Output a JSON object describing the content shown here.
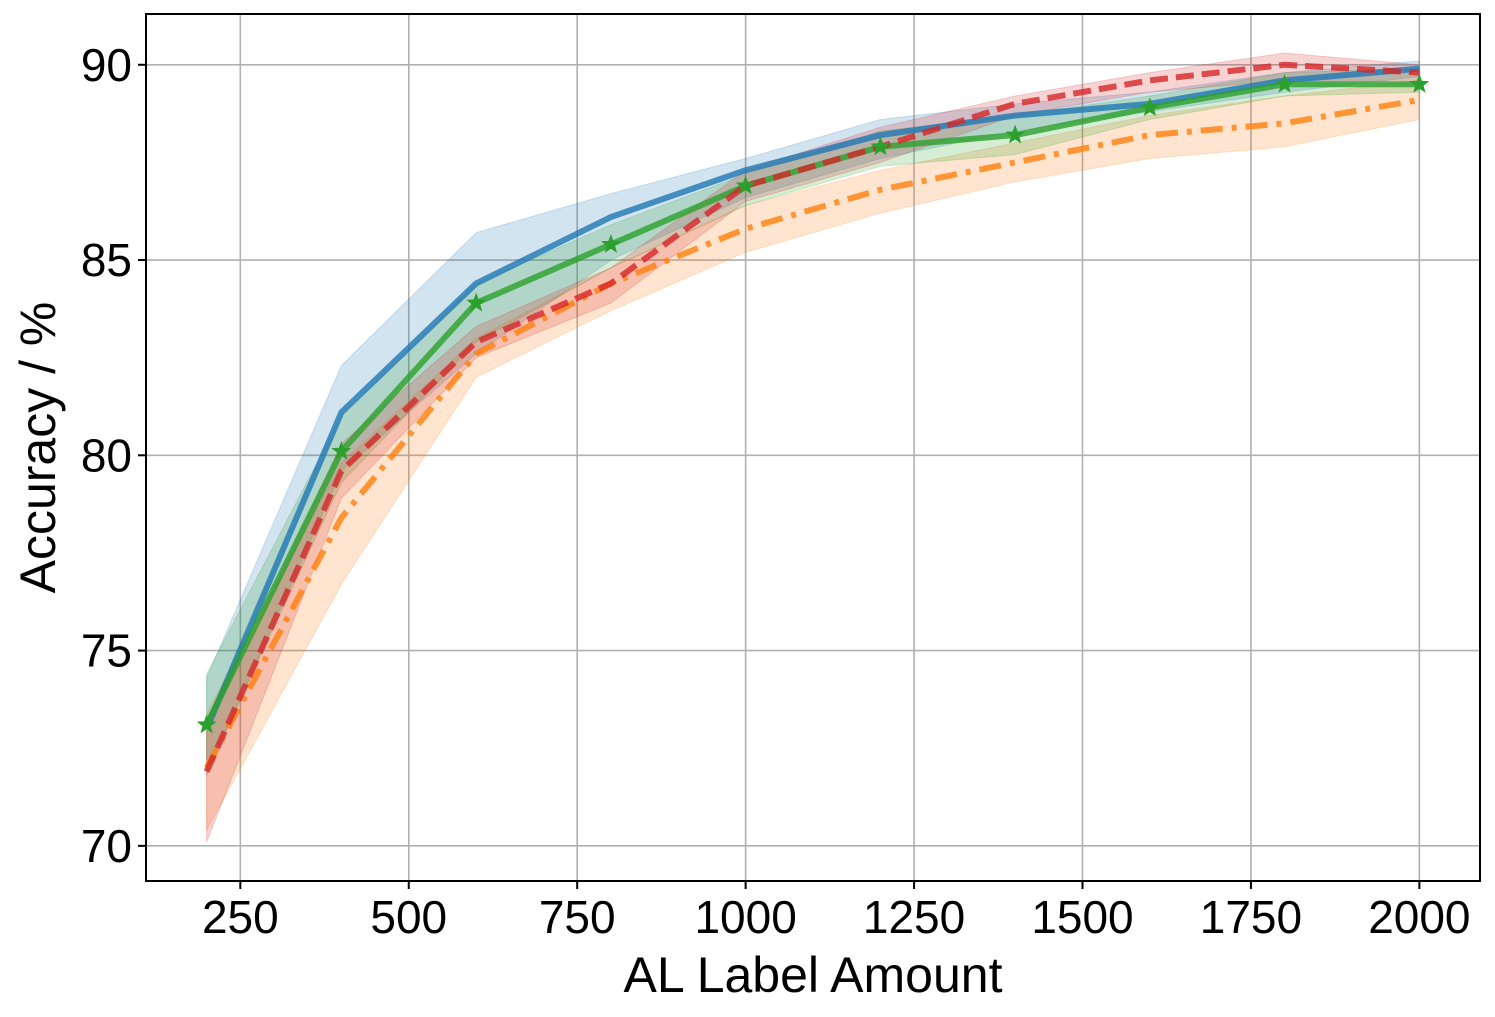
{
  "chart_data": {
    "type": "line",
    "title": "",
    "xlabel": "AL Label Amount",
    "ylabel": "Accuracy / %",
    "xlim": [
      110,
      2090
    ],
    "ylim": [
      69.1,
      91.3
    ],
    "xticks": [
      250,
      500,
      750,
      1000,
      1250,
      1500,
      1750,
      2000
    ],
    "yticks": [
      70,
      75,
      80,
      85,
      90
    ],
    "grid": true,
    "legend": "none",
    "x": [
      200,
      400,
      600,
      800,
      1000,
      1200,
      1400,
      1600,
      1800,
      2000
    ],
    "series": [
      {
        "color": "#1f77b4",
        "line_style": "solid",
        "marker": "none",
        "values": [
          73.0,
          81.1,
          84.4,
          86.1,
          87.3,
          88.2,
          88.7,
          89.0,
          89.6,
          89.9
        ],
        "lower": [
          71.8,
          79.6,
          82.6,
          85.0,
          86.6,
          87.6,
          88.3,
          88.8,
          89.3,
          89.7
        ],
        "upper": [
          74.3,
          82.3,
          85.7,
          86.7,
          87.6,
          88.6,
          89.0,
          89.3,
          89.8,
          90.1
        ]
      },
      {
        "color": "#ff7f0e",
        "line_style": "dashdot",
        "marker": "none",
        "values": [
          72.0,
          78.4,
          82.6,
          84.4,
          85.8,
          86.8,
          87.5,
          88.2,
          88.5,
          89.1
        ],
        "lower": [
          70.4,
          76.7,
          82.0,
          83.7,
          85.2,
          86.2,
          87.0,
          87.6,
          87.9,
          88.6
        ],
        "upper": [
          73.4,
          79.8,
          83.0,
          84.8,
          86.4,
          87.3,
          88.0,
          88.7,
          89.2,
          89.6
        ]
      },
      {
        "color": "#2ca02c",
        "line_style": "solid",
        "marker": "star",
        "values": [
          73.1,
          80.1,
          83.9,
          85.4,
          86.9,
          87.9,
          88.2,
          88.9,
          89.5,
          89.5
        ],
        "lower": [
          71.9,
          79.3,
          82.9,
          84.8,
          86.4,
          87.4,
          87.7,
          88.6,
          89.2,
          89.3
        ],
        "upper": [
          74.4,
          81.0,
          84.4,
          85.9,
          87.2,
          88.3,
          88.7,
          89.2,
          89.8,
          89.9
        ]
      },
      {
        "color": "#d62728",
        "line_style": "dashed",
        "marker": "none",
        "values": [
          71.9,
          79.6,
          82.9,
          84.4,
          86.9,
          87.9,
          89.0,
          89.6,
          90.0,
          89.8
        ],
        "lower": [
          70.1,
          78.9,
          82.5,
          83.9,
          86.5,
          87.5,
          88.7,
          89.3,
          89.6,
          89.6
        ],
        "upper": [
          72.9,
          80.3,
          83.3,
          84.8,
          87.3,
          88.4,
          89.2,
          89.8,
          90.3,
          90.0
        ]
      }
    ]
  }
}
